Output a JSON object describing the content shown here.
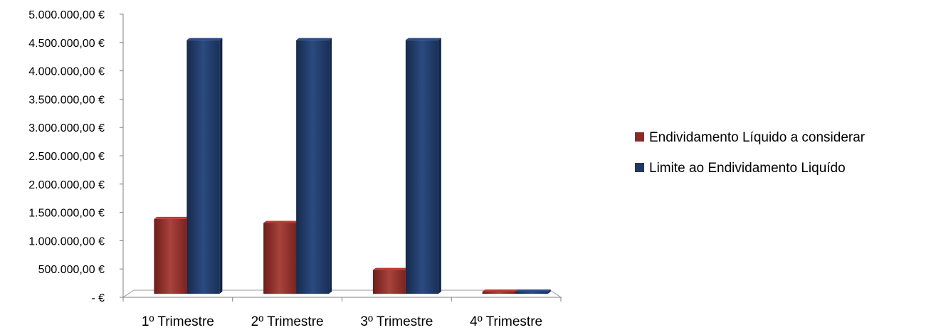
{
  "chart_data": {
    "type": "bar",
    "subtype": "3d-clustered-column",
    "categories": [
      "1º Trimestre",
      "2º Trimestre",
      "3º Trimestre",
      "4º Trimestre"
    ],
    "series": [
      {
        "name": "Endividamento Líquido a considerar",
        "values": [
          1320000,
          1250000,
          420000,
          0
        ],
        "color": "#8B2A26"
      },
      {
        "name": "Limite ao Endividamento Liquído",
        "values": [
          4480000,
          4480000,
          4480000,
          0
        ],
        "color": "#1F3864"
      }
    ],
    "ylim": [
      0,
      5000000
    ],
    "yticks": [
      {
        "value": 5000000,
        "label": "5.000.000,00 €"
      },
      {
        "value": 4500000,
        "label": "4.500.000,00 €"
      },
      {
        "value": 4000000,
        "label": "4.000.000,00 €"
      },
      {
        "value": 3500000,
        "label": "3.500.000,00 €"
      },
      {
        "value": 3000000,
        "label": "3.000.000,00 €"
      },
      {
        "value": 2500000,
        "label": "2.500.000,00 €"
      },
      {
        "value": 2000000,
        "label": "2.000.000,00 €"
      },
      {
        "value": 1500000,
        "label": "1.500.000,00 €"
      },
      {
        "value": 1000000,
        "label": "1.000.000,00 €"
      },
      {
        "value": 500000,
        "label": "500.000,00 €"
      },
      {
        "value": 0,
        "label": "-  €"
      }
    ],
    "grid": false,
    "legend_position": "right",
    "title": "",
    "xlabel": "",
    "ylabel": ""
  }
}
